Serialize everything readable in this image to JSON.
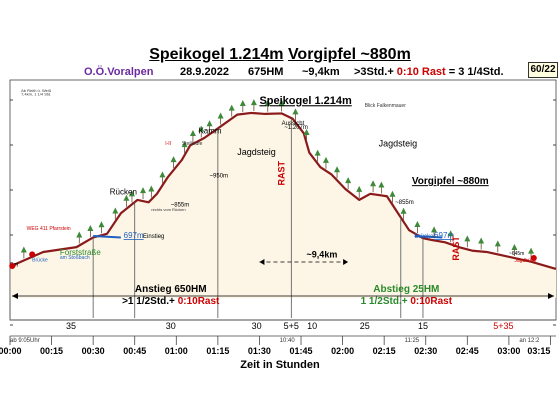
{
  "header": {
    "title_summit": "Speikogel 1.214m",
    "title_sep": " ",
    "title_fore": "Vorgipfel ~880m",
    "region": "O.Ö.Voralpen",
    "date": "28.9.2022",
    "ascent": "675HM",
    "distance": "~9,4km",
    "duration_a": ">3Std.+ ",
    "rest_part": "0:10 Rast",
    "duration_b": " = 3 1/4Std.",
    "badge": "60/22"
  },
  "colors": {
    "fill": "#fdf6e6",
    "profile": "#8b1a1a",
    "red": "#cc0000",
    "blue": "#1f5fbf",
    "green": "#2a8a2a",
    "grid": "#555555",
    "tree": "#3f8a3a",
    "region": "#6a2aa0",
    "badge_bg": "#ffffe0"
  },
  "chart_data": {
    "type": "area",
    "title": "Speikogel 1.214m Vorgipfel ~880m",
    "xlabel": "Zeit in Stunden",
    "ylabel": "",
    "x_unit": "minutes",
    "xlim": [
      0,
      197
    ],
    "ylim": [
      450,
      1350
    ],
    "x_ticks": [
      "00:00",
      "00:15",
      "00:30",
      "00:45",
      "01:00",
      "01:15",
      "01:30",
      "01:45",
      "02:00",
      "02:15",
      "02:30",
      "02:45",
      "03:00",
      "03:15"
    ],
    "profile": {
      "x": [
        0,
        12,
        24,
        30,
        35,
        40,
        46,
        50,
        53,
        57,
        62,
        65,
        70,
        75,
        82,
        87,
        92,
        98,
        102,
        106,
        108,
        112,
        116,
        121,
        126,
        130,
        136,
        140,
        144,
        149,
        152,
        157,
        162,
        167,
        172,
        180,
        188,
        197
      ],
      "y": [
        580,
        640,
        660,
        700,
        715,
        800,
        855,
        845,
        880,
        950,
        1020,
        1080,
        1110,
        1150,
        1207,
        1214,
        1210,
        1212,
        1190,
        1130,
        1050,
        990,
        960,
        900,
        855,
        880,
        870,
        800,
        730,
        697,
        690,
        680,
        660,
        645,
        640,
        620,
        600,
        570
      ]
    },
    "labels": [
      {
        "text": "Speikogel 1.214m",
        "x": 90,
        "y": 1250,
        "size": 11,
        "bold": true,
        "underline": true,
        "color": "#000000"
      },
      {
        "text": "Vorgipfel ~880m",
        "x": 145,
        "y": 920,
        "size": 10,
        "bold": true,
        "underline": true,
        "color": "#000000"
      },
      {
        "text": "Blick Falkenmauer",
        "x": 128,
        "y": 1238,
        "size": 5,
        "color": "#333333"
      },
      {
        "text": "Aussicht",
        "x": 98,
        "y": 1165,
        "size": 6,
        "color": "#000000"
      },
      {
        "text": "~1.207m",
        "x": 99,
        "y": 1148,
        "size": 6,
        "color": "#000000"
      },
      {
        "text": "Kamm",
        "x": 68,
        "y": 1130,
        "size": 8,
        "color": "#000000"
      },
      {
        "text": "Steilstufe",
        "x": 62,
        "y": 1082,
        "size": 5,
        "color": "#333333"
      },
      {
        "text": "I-II",
        "x": 56,
        "y": 1082,
        "size": 5,
        "color": "#cc0000"
      },
      {
        "text": "~950m",
        "x": 72,
        "y": 948,
        "size": 6,
        "color": "#000000"
      },
      {
        "text": "Jagdsteig",
        "x": 82,
        "y": 1040,
        "size": 9,
        "color": "#000000"
      },
      {
        "text": "Jagdsteig",
        "x": 133,
        "y": 1075,
        "size": 9,
        "color": "#000000"
      },
      {
        "text": "Rücken",
        "x": 36,
        "y": 878,
        "size": 8,
        "color": "#000000"
      },
      {
        "text": "~855m",
        "x": 58,
        "y": 828,
        "size": 6,
        "color": "#000000"
      },
      {
        "text": "rechts vom Rücken",
        "x": 51,
        "y": 810,
        "size": 4,
        "color": "#333333"
      },
      {
        "text": "~855m",
        "x": 139,
        "y": 838,
        "size": 6,
        "color": "#000000"
      },
      {
        "text": "WEG 411 Pfarrstein",
        "x": 6,
        "y": 730,
        "size": 5,
        "color": "#cc0000"
      },
      {
        "text": "697m",
        "x": 41,
        "y": 697,
        "size": 8,
        "color": "#1f5fbf",
        "underline": true
      },
      {
        "text": "Einstieg",
        "x": 48,
        "y": 697,
        "size": 6,
        "color": "#000000"
      },
      {
        "text": "Brücke",
        "x": 146,
        "y": 697,
        "size": 6,
        "color": "#1f5fbf"
      },
      {
        "text": "697m",
        "x": 153,
        "y": 697,
        "size": 8,
        "color": "#1f5fbf",
        "underline": true
      },
      {
        "text": "Forststraße",
        "x": 18,
        "y": 628,
        "size": 8,
        "color": "#2a8a2a"
      },
      {
        "text": "am Stoßbach",
        "x": 18,
        "y": 611,
        "size": 5,
        "color": "#1f5fbf"
      },
      {
        "text": "Brücke",
        "x": 8,
        "y": 600,
        "size": 5,
        "color": "#1f5fbf"
      },
      {
        "text": "0m",
        "x": 0,
        "y": 580,
        "size": 6,
        "color": "#000000"
      },
      {
        "text": "~645m",
        "x": 180,
        "y": 628,
        "size": 5,
        "color": "#000000"
      },
      {
        "text": "Jagdhütte",
        "x": 182,
        "y": 598,
        "size": 5,
        "color": "#cc0000"
      },
      {
        "text": "~9,4km",
        "x": 107,
        "y": 618,
        "size": 9,
        "bold": true,
        "color": "#000000"
      },
      {
        "text": "Ab Reith ü. Weiß",
        "x": 4,
        "y": 1300,
        "size": 4,
        "color": "#333333"
      },
      {
        "text": "7,4km, 1 1/4 Std.",
        "x": 4,
        "y": 1285,
        "size": 4,
        "color": "#333333"
      }
    ],
    "rast_markers": [
      {
        "text": "RAST",
        "x": 99,
        "y": 965
      },
      {
        "text": "RAST",
        "x": 162,
        "y": 655
      }
    ],
    "trees_x": [
      5,
      25,
      29,
      33,
      38,
      42,
      44,
      48,
      51,
      55,
      59,
      63,
      66,
      69,
      72,
      76,
      80,
      84,
      88,
      93,
      98,
      103,
      107,
      111,
      114,
      118,
      122,
      126,
      131,
      134,
      138,
      142,
      147,
      153,
      159,
      165,
      170,
      176,
      182,
      188
    ],
    "dividers_x": [
      0,
      30,
      45,
      75,
      101.5,
      141,
      149
    ],
    "phases": [
      {
        "l1": "Anstieg 650HM",
        "l2a": ">1 1/2Std.+ ",
        "l2b": "0:10Rast",
        "x": 58,
        "align": "middle"
      },
      {
        "l1": "Abstieg 25HM",
        "l2a": "1 1/2Std.+ ",
        "l2b": "0:10Rast",
        "x": 143,
        "align": "middle"
      }
    ],
    "segments": [
      {
        "label": "35",
        "x": 22
      },
      {
        "label": "30",
        "x": 58
      },
      {
        "label": "30",
        "x": 89
      },
      {
        "label": "5+5",
        "x": 101.5
      },
      {
        "label": "10",
        "x": 109
      },
      {
        "label": "25",
        "x": 128
      },
      {
        "label": "15",
        "x": 149
      },
      {
        "label": "5+35",
        "x": 178
      }
    ],
    "time_marks": [
      {
        "text": "ab 9:05Uhr",
        "x": 0
      },
      {
        "text": "10:40",
        "x": 100
      },
      {
        "text": "11:25",
        "x": 145
      },
      {
        "text": "an 12:2",
        "x": 191
      }
    ]
  }
}
